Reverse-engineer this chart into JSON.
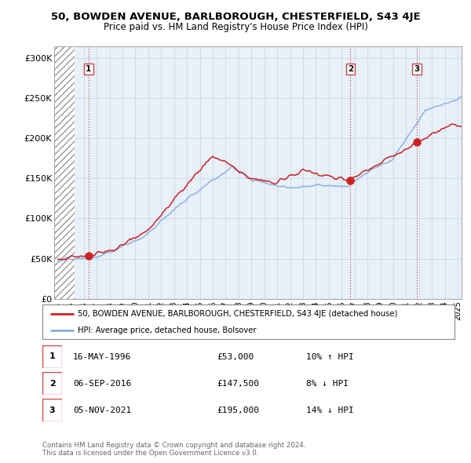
{
  "title": "50, BOWDEN AVENUE, BARLBOROUGH, CHESTERFIELD, S43 4JE",
  "subtitle": "Price paid vs. HM Land Registry's House Price Index (HPI)",
  "ylabel_ticks": [
    "£0",
    "£50K",
    "£100K",
    "£150K",
    "£200K",
    "£250K",
    "£300K"
  ],
  "ytick_values": [
    0,
    50000,
    100000,
    150000,
    200000,
    250000,
    300000
  ],
  "ylim": [
    0,
    315000
  ],
  "xlim_start": 1993.7,
  "xlim_end": 2025.3,
  "hatch_end": 1995.3,
  "sale_dates": [
    1996.37,
    2016.68,
    2021.84
  ],
  "sale_prices": [
    53000,
    147500,
    195000
  ],
  "sale_labels": [
    "1",
    "2",
    "3"
  ],
  "legend_line1": "50, BOWDEN AVENUE, BARLBOROUGH, CHESTERFIELD, S43 4JE (detached house)",
  "legend_line2": "HPI: Average price, detached house, Bolsover",
  "table_rows": [
    [
      "1",
      "16-MAY-1996",
      "£53,000",
      "10% ↑ HPI"
    ],
    [
      "2",
      "06-SEP-2016",
      "£147,500",
      "8% ↓ HPI"
    ],
    [
      "3",
      "05-NOV-2021",
      "£195,000",
      "14% ↓ HPI"
    ]
  ],
  "footnote1": "Contains HM Land Registry data © Crown copyright and database right 2024.",
  "footnote2": "This data is licensed under the Open Government Licence v3.0.",
  "red_line_color": "#cc2222",
  "blue_line_color": "#88aadd",
  "grid_color": "#ccddee",
  "bg_color": "#e8f0f8",
  "dashed_color": "#cc4444"
}
